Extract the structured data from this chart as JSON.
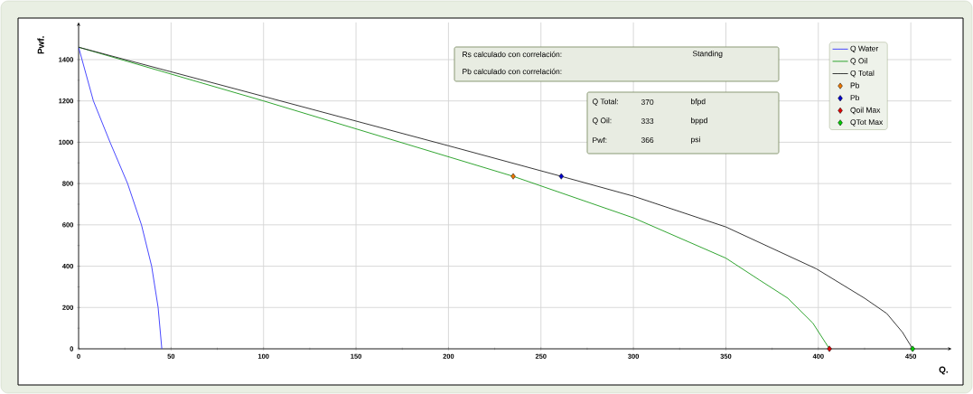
{
  "chart_data": {
    "type": "line",
    "xlabel": "Q.",
    "ylabel": "Pwf.",
    "xlim": [
      0,
      472
    ],
    "ylim": [
      0,
      1580
    ],
    "xticks": [
      0,
      50,
      100,
      150,
      200,
      250,
      300,
      350,
      400,
      450
    ],
    "yticks": [
      0,
      200,
      400,
      600,
      800,
      1000,
      1200,
      1400
    ],
    "grid": true,
    "legend": "top right",
    "line_style": "solid",
    "annotations": [
      "Rs calculado con correlación:",
      "Standing",
      "Pb calculado con correlación:",
      "Q Total:",
      "370",
      "bfpd",
      "Q Oil:",
      "333",
      "bppd",
      "Pwf:",
      "366",
      "psi"
    ],
    "series": [
      {
        "name": "Q Water",
        "type": "line",
        "marker": "none",
        "color": "#3333ff",
        "x": [
          0,
          8,
          17,
          26.5,
          34,
          39.5,
          43,
          45
        ],
        "values": [
          1460,
          1200,
          1000,
          800,
          600,
          400,
          200,
          0
        ]
      },
      {
        "name": "Q Oil",
        "type": "line",
        "marker": "none",
        "color": "#1a9a1a",
        "x": [
          0,
          100,
          235,
          300,
          350,
          368,
          383.5,
          397,
          406
        ],
        "values": [
          1460,
          1200,
          835,
          634,
          439,
          334,
          245,
          125,
          0
        ]
      },
      {
        "name": "Q Total",
        "type": "line",
        "marker": "none",
        "color": "#222222",
        "x": [
          0,
          100,
          200,
          261,
          300,
          350,
          399,
          425,
          437,
          445.5,
          451
        ],
        "values": [
          1460,
          1222,
          983,
          835,
          739,
          590,
          387,
          245,
          171,
          80,
          0
        ]
      },
      {
        "name": "Pb",
        "type": "scatter",
        "marker": "diamond",
        "color": "#f07800",
        "x": [
          235
        ],
        "values": [
          835
        ]
      },
      {
        "name": "Pb",
        "type": "scatter",
        "marker": "diamond",
        "color": "#0000cc",
        "x": [
          261
        ],
        "values": [
          835
        ]
      },
      {
        "name": "Qoil Max",
        "type": "scatter",
        "marker": "diamond",
        "color": "#e00000",
        "x": [
          406
        ],
        "values": [
          0
        ]
      },
      {
        "name": "QTot Max",
        "type": "scatter",
        "marker": "diamond",
        "color": "#00cc00",
        "x": [
          451
        ],
        "values": [
          0
        ]
      }
    ]
  }
}
